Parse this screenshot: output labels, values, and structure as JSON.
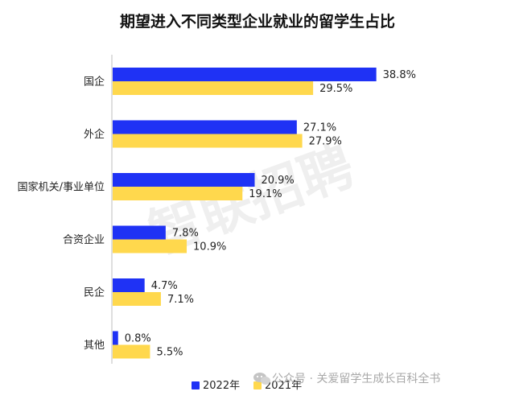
{
  "chart_data": {
    "type": "bar",
    "orientation": "horizontal",
    "title": "期望进入不同类型企业就业的留学生占比",
    "categories": [
      "国企",
      "外企",
      "国家机关/事业单位",
      "合资企业",
      "民企",
      "其他"
    ],
    "series": [
      {
        "name": "2022年",
        "color": "#1f32f5",
        "values": [
          38.8,
          27.1,
          20.9,
          7.8,
          4.7,
          0.8
        ],
        "labels": [
          "38.8%",
          "27.1%",
          "20.9%",
          "7.8%",
          "4.7%",
          "0.8%"
        ]
      },
      {
        "name": "2021年",
        "color": "#ffd84d",
        "values": [
          29.5,
          27.9,
          19.1,
          10.9,
          7.1,
          5.5
        ],
        "labels": [
          "29.5%",
          "27.9%",
          "19.1%",
          "10.9%",
          "7.1%",
          "5.5%"
        ]
      }
    ],
    "xlim": [
      0,
      45
    ],
    "unit": "%",
    "grid": false,
    "legend_position": "bottom-left"
  },
  "watermark": "智联招聘",
  "footer": {
    "source": "公众号 · 关爱留学生成长百科全书",
    "icon": "wechat-icon"
  }
}
